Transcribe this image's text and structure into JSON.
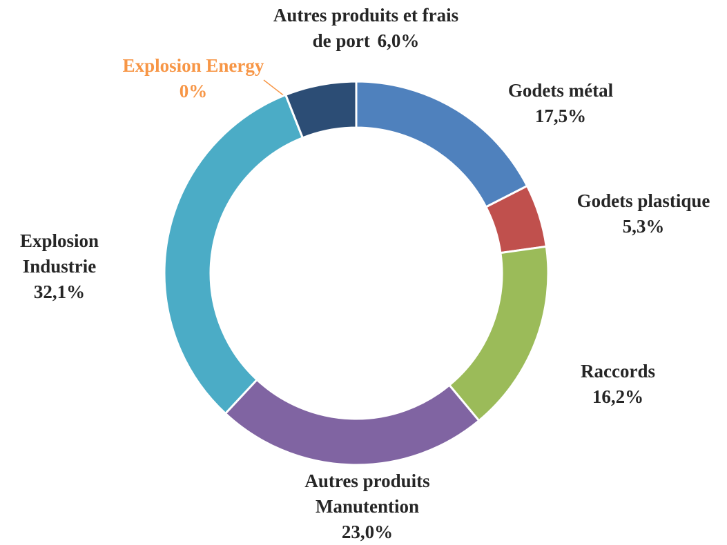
{
  "chart_data": {
    "type": "donut",
    "categories": [
      "Godets métal",
      "Godets plastique",
      "Raccords",
      "Autres produits Manutention",
      "Explosion Industrie",
      "Explosion Energy",
      "Autres produits et frais de port"
    ],
    "values": [
      17.5,
      5.3,
      16.2,
      23.0,
      32.1,
      0,
      6.0
    ],
    "value_labels": [
      "17,5%",
      "5,3%",
      "16,2%",
      "23,0%",
      "32,1%",
      "0%",
      "6,0%"
    ],
    "colors": [
      "#4f81bd",
      "#c0504d",
      "#9bbb59",
      "#8064a2",
      "#4bacc6",
      "#f79646",
      "#2c4d75"
    ]
  }
}
